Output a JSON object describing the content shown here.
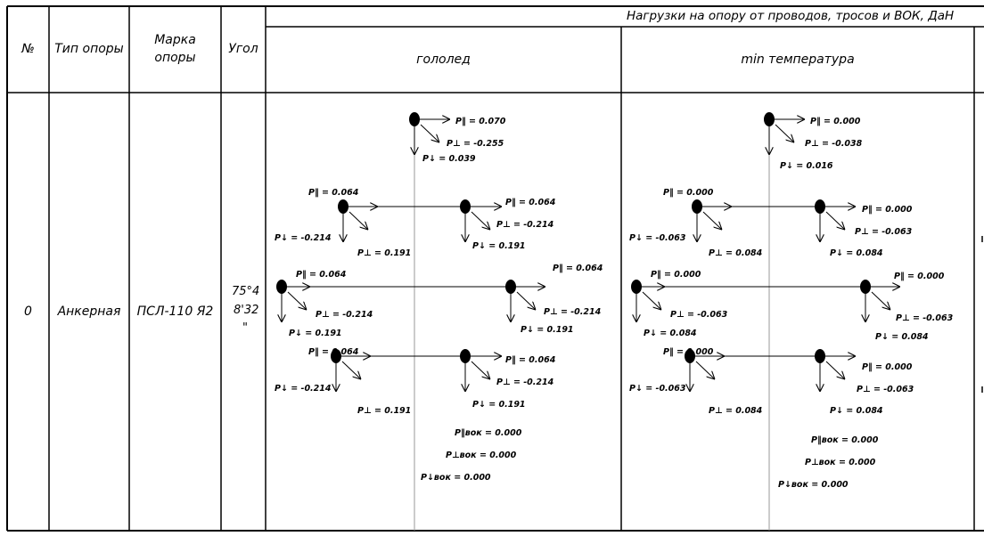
{
  "header": {
    "num": "№",
    "type": "Тип опоры",
    "mark_line1": "Марка",
    "mark_line2": "опоры",
    "angle": "Угол",
    "loads_title": "Нагрузки на опору от проводов, тросов и ВОК, ДаН",
    "glaze": "гололед",
    "min_temp": "min температура"
  },
  "row": {
    "num": "0",
    "type": "Анкерная",
    "mark": "ПСЛ-110 Я2",
    "angle_line1": "75°4",
    "angle_line2": "8'32",
    "angle_line3": "\""
  },
  "glaze_labels": {
    "top_par": "P‖ = 0.070",
    "top_perp": "P⊥ = -0.255",
    "top_down": "P↓ = 0.039",
    "r1l_par": "P‖ = 0.064",
    "r1l_down": "P↓ = -0.214",
    "r1l_perp": "P⊥ = 0.191",
    "r1r_par": "P‖ = 0.064",
    "r1r_perp": "P⊥ = -0.214",
    "r1r_down": "P↓ = 0.191",
    "r2l_par": "P‖ = 0.064",
    "r2l_perp": "P⊥ = -0.214",
    "r2l_down": "P↓ = 0.191",
    "r2r_par": "P‖ = 0.064",
    "r2r_perp": "P⊥ = -0.214",
    "r2r_down": "P↓ = 0.191",
    "r3l_par": "P‖ = 0.064",
    "r3l_down": "P↓ = -0.214",
    "r3l_perp": "P⊥ = 0.191",
    "r3r_par": "P‖ = 0.064",
    "r3r_perp": "P⊥ = -0.214",
    "r3r_down": "P↓ = 0.191",
    "vok_par": "P‖вок = 0.000",
    "vok_perp": "P⊥вок = 0.000",
    "vok_down": "P↓вок = 0.000"
  },
  "temp_labels": {
    "top_par": "P‖ = 0.000",
    "top_perp": "P⊥ = -0.038",
    "top_down": "P↓ = 0.016",
    "r1l_par": "P‖ = 0.000",
    "r1l_down": "P↓ = -0.063",
    "r1l_perp": "P⊥ = 0.084",
    "r1r_par": "P‖ = 0.000",
    "r1r_perp": "P⊥ = -0.063",
    "r1r_down": "P↓ = 0.084",
    "r2l_par": "P‖ = 0.000",
    "r2l_perp": "P⊥ = -0.063",
    "r2l_down": "P↓ = 0.084",
    "r2r_par": "P‖ = 0.000",
    "r2r_perp": "P⊥ = -0.063",
    "r2r_down": "P↓ = 0.084",
    "r3l_par": "P‖ = 0.000",
    "r3l_down": "P↓ = -0.063",
    "r3l_perp": "P⊥ = 0.084",
    "r3r_par": "P‖ = 0.000",
    "r3r_perp": "P⊥ = -0.063",
    "r3r_down": "P↓ = 0.084",
    "vok_par": "P‖вок = 0.000",
    "vok_perp": "P⊥вок = 0.000",
    "vok_down": "P↓вок = 0.000"
  }
}
